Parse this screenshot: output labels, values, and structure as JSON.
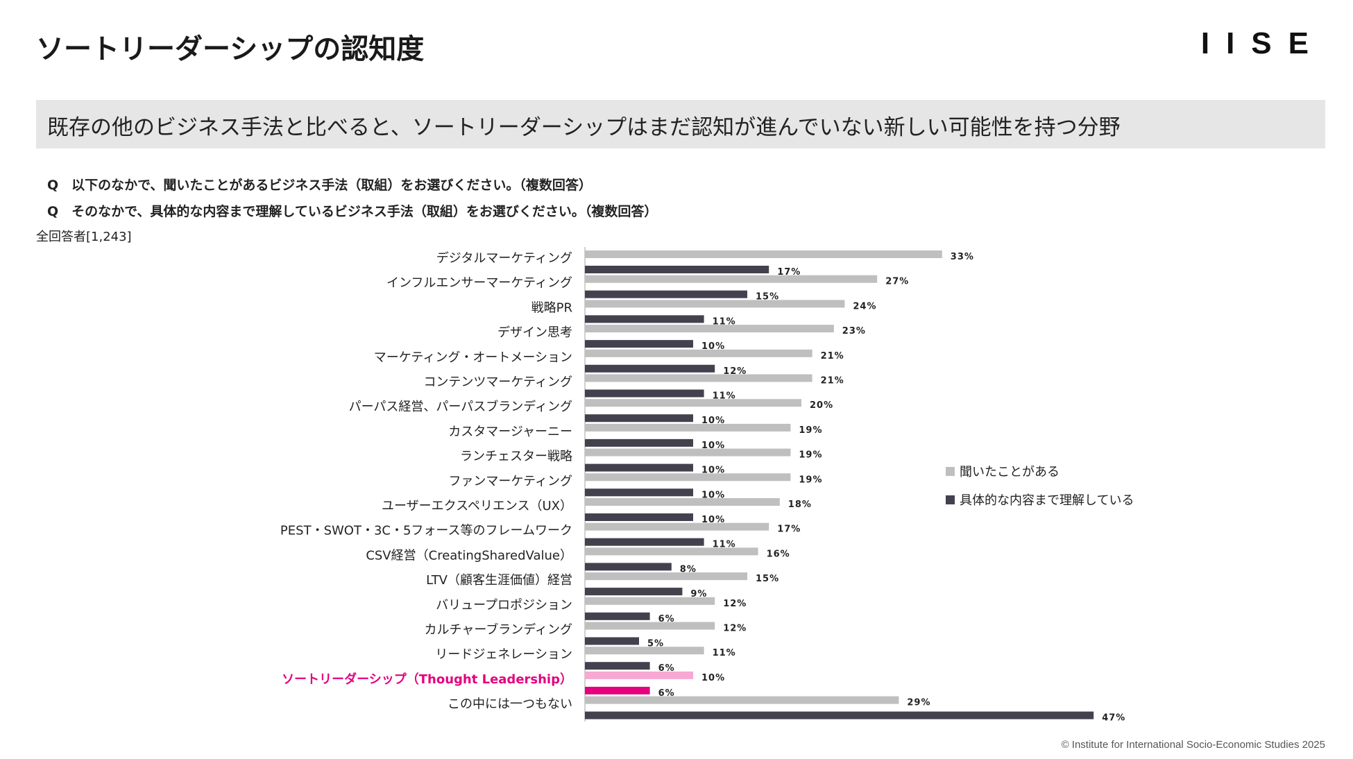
{
  "header": {
    "title": "ソートリーダーシップの認知度",
    "logo": "IISE"
  },
  "banner": {
    "text": "既存の他のビジネス手法と比べると、ソートリーダーシップはまだ認知が進んでいない新しい可能性を持つ分野"
  },
  "questions": {
    "q1": "Q　以下のなかで、聞いたことがあるビジネス手法（取組）をお選びください。（複数回答）",
    "q2": "Q　そのなかで、具体的な内容まで理解しているビジネス手法（取組）をお選びください。（複数回答）"
  },
  "base_label": "全回答者[1,243]",
  "footer": "© Institute for International Socio-Economic Studies 2025",
  "colors": {
    "heard": "#bfbfbf",
    "understand": "#44414f",
    "highlight_heard": "#f7a8d3",
    "highlight_understand": "#e4007f",
    "highlight_text": "#e4007f"
  },
  "chart_data": {
    "type": "bar",
    "orientation": "horizontal",
    "title": "",
    "xlabel": "",
    "ylabel": "",
    "xlim": [
      0,
      50
    ],
    "value_suffix": "%",
    "highlight_index": 17,
    "categories": [
      "デジタルマーケティング",
      "インフルエンサーマーケティング",
      "戦略PR",
      "デザイン思考",
      "マーケティング・オートメーション",
      "コンテンツマーケティング",
      "パーパス経営、パーパスブランディング",
      "カスタマージャーニー",
      "ランチェスター戦略",
      "ファンマーケティング",
      "ユーザーエクスペリエンス（UX）",
      "PEST・SWOT・3C・5フォース等のフレームワーク",
      "CSV経営（CreatingSharedValue）",
      "LTV（顧客生涯価値）経営",
      "バリュープロポジション",
      "カルチャーブランディング",
      "リードジェネレーション",
      "ソートリーダーシップ（Thought Leadership）",
      "この中には一つもない"
    ],
    "series": [
      {
        "name": "聞いたことがある",
        "values": [
          33,
          27,
          24,
          23,
          21,
          21,
          20,
          19,
          19,
          19,
          18,
          17,
          16,
          15,
          12,
          12,
          11,
          10,
          29
        ]
      },
      {
        "name": "具体的な内容まで理解している",
        "values": [
          17,
          15,
          11,
          10,
          12,
          11,
          10,
          10,
          10,
          10,
          10,
          11,
          8,
          9,
          6,
          5,
          6,
          6,
          47
        ]
      }
    ],
    "legend_position": "right"
  }
}
